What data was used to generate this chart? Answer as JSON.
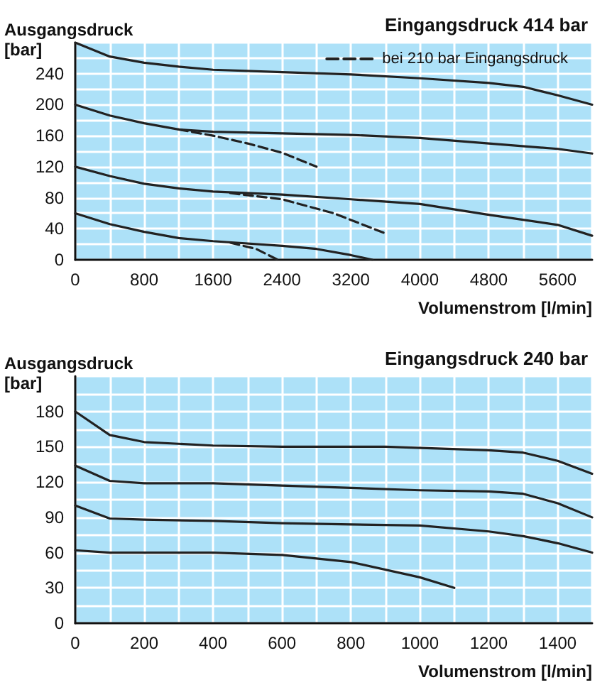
{
  "chart_data": [
    {
      "type": "line",
      "title": "Eingangsdruck 414 bar",
      "ylabel": "Ausgangsdruck [bar]",
      "xlabel": "Volumenstrom [l/min]",
      "xlim": [
        0,
        6000
      ],
      "xticks": [
        0,
        800,
        1600,
        2400,
        3200,
        4000,
        4800,
        5600
      ],
      "ylim": [
        0,
        280
      ],
      "yticks": [
        0,
        40,
        80,
        120,
        160,
        200,
        240
      ],
      "grid": true,
      "legend": "top right",
      "marker": "none",
      "series": [
        {
          "color": "#222222",
          "x": [
            0,
            400,
            800,
            1200,
            1600,
            2400,
            3200,
            4000,
            4800,
            5200,
            5600,
            6000
          ],
          "values": [
            280,
            262,
            254,
            249,
            245,
            242,
            239,
            234,
            228,
            223,
            212,
            200
          ]
        },
        {
          "color": "#222222",
          "x": [
            0,
            400,
            800,
            1200,
            1600,
            2400,
            3200,
            4000,
            4800,
            5600,
            6000
          ],
          "values": [
            200,
            186,
            176,
            168,
            165,
            163,
            161,
            157,
            150,
            143,
            137
          ]
        },
        {
          "color": "#222222",
          "x": [
            0,
            400,
            800,
            1200,
            1600,
            2400,
            3200,
            4000,
            4800,
            5600,
            6000
          ],
          "values": [
            120,
            108,
            98,
            92,
            88,
            84,
            78,
            72,
            58,
            45,
            31
          ]
        },
        {
          "color": "#222222",
          "x": [
            0,
            400,
            800,
            1200,
            1600,
            2400,
            2800,
            3200,
            3450
          ],
          "values": [
            60,
            46,
            36,
            28,
            24,
            18,
            14,
            6,
            0
          ]
        },
        {
          "name": "bei 210 bar Eingangsdruck",
          "color": "#222222",
          "line_style": "dashed",
          "x": [
            1200,
            1600,
            2000,
            2400,
            2800
          ],
          "values": [
            168,
            160,
            150,
            138,
            120
          ]
        },
        {
          "color": "#222222",
          "line_style": "dashed",
          "x": [
            1800,
            2400,
            3000,
            3600
          ],
          "values": [
            86,
            78,
            60,
            34
          ]
        },
        {
          "color": "#222222",
          "line_style": "dashed",
          "x": [
            1800,
            2100,
            2350
          ],
          "values": [
            22,
            14,
            0
          ]
        }
      ]
    },
    {
      "type": "line",
      "title": "Eingangsdruck 240 bar",
      "ylabel": "Ausgangsdruck [bar]",
      "xlabel": "Volumenstrom [l/min]",
      "xlim": [
        0,
        1500
      ],
      "xticks": [
        0,
        200,
        400,
        600,
        800,
        1000,
        1200,
        1400
      ],
      "ylim": [
        0,
        210
      ],
      "yticks": [
        0,
        30,
        60,
        90,
        120,
        150,
        180
      ],
      "grid": true,
      "marker": "none",
      "series": [
        {
          "color": "#222222",
          "x": [
            0,
            100,
            200,
            400,
            600,
            900,
            1200,
            1300,
            1400,
            1500
          ],
          "values": [
            180,
            160,
            154,
            151,
            150,
            150,
            147,
            145,
            138,
            127
          ]
        },
        {
          "color": "#222222",
          "x": [
            0,
            100,
            200,
            400,
            600,
            800,
            1000,
            1200,
            1300,
            1400,
            1500
          ],
          "values": [
            134,
            121,
            119,
            119,
            117,
            115,
            113,
            112,
            110,
            102,
            90
          ]
        },
        {
          "color": "#222222",
          "x": [
            0,
            100,
            200,
            400,
            600,
            800,
            1000,
            1200,
            1300,
            1400,
            1500
          ],
          "values": [
            100,
            89,
            88,
            87,
            85,
            84,
            83,
            78,
            74,
            68,
            60
          ]
        },
        {
          "color": "#222222",
          "x": [
            0,
            100,
            400,
            600,
            800,
            1000,
            1100
          ],
          "values": [
            62,
            60,
            60,
            58,
            52,
            39,
            30
          ]
        }
      ]
    }
  ]
}
